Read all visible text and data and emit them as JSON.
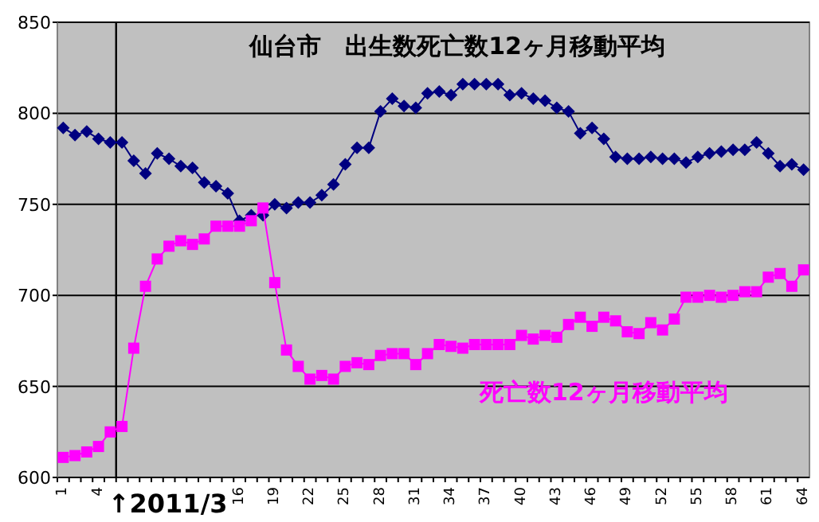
{
  "chart_data": {
    "type": "line",
    "title": "仙台市　出生数死亡数12ヶ月移動平均",
    "x": [
      1,
      2,
      3,
      4,
      5,
      6,
      7,
      8,
      9,
      10,
      11,
      12,
      13,
      14,
      15,
      16,
      17,
      18,
      19,
      20,
      21,
      22,
      23,
      24,
      25,
      26,
      27,
      28,
      29,
      30,
      31,
      32,
      33,
      34,
      35,
      36,
      37,
      38,
      39,
      40,
      41,
      42,
      43,
      44,
      45,
      46,
      47,
      48,
      49,
      50,
      51,
      52,
      53,
      54,
      55,
      56,
      57,
      58,
      59,
      60,
      61,
      62,
      63,
      64
    ],
    "series": [
      {
        "color": "#000080",
        "marker": "diamond",
        "values": [
          792,
          788,
          790,
          786,
          784,
          784,
          774,
          767,
          778,
          775,
          771,
          770,
          762,
          760,
          756,
          741,
          744,
          744,
          750,
          748,
          751,
          751,
          755,
          761,
          772,
          781,
          781,
          801,
          808,
          804,
          803,
          811,
          812,
          810,
          816,
          816,
          816,
          816,
          810,
          811,
          808,
          807,
          803,
          801,
          789,
          792,
          786,
          776,
          775,
          775,
          776,
          775,
          775,
          773,
          776,
          778,
          779,
          780,
          780,
          784,
          778,
          771,
          772,
          769
        ]
      },
      {
        "name": "死亡数12ヶ月移動平均",
        "color": "#ff00ff",
        "marker": "square",
        "values": [
          611,
          612,
          614,
          617,
          625,
          628,
          671,
          705,
          720,
          727,
          730,
          728,
          731,
          738,
          738,
          738,
          741,
          748,
          707,
          670,
          661,
          654,
          656,
          654,
          661,
          663,
          662,
          667,
          668,
          668,
          662,
          668,
          673,
          672,
          671,
          673,
          673,
          673,
          673,
          678,
          676,
          678,
          677,
          684,
          688,
          683,
          688,
          686,
          680,
          679,
          685,
          681,
          687,
          699,
          699,
          700,
          699,
          700,
          702,
          702,
          710,
          712,
          705,
          714
        ]
      }
    ],
    "xlim": [
      0.5,
      64.5
    ],
    "xticks": [
      1,
      4,
      16,
      19,
      22,
      25,
      28,
      31,
      34,
      37,
      40,
      43,
      46,
      49,
      52,
      55,
      58,
      61,
      64
    ],
    "ylim": [
      600,
      850
    ],
    "yticks": [
      600,
      650,
      700,
      750,
      800,
      850
    ],
    "grid": "y",
    "ref_lines": [
      {
        "axis": "x",
        "value": 5.5,
        "color": "#000000"
      }
    ],
    "annotations": [
      "↑2011/3"
    ]
  }
}
